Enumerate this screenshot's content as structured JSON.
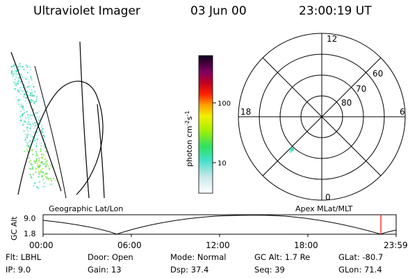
{
  "header": {
    "instrument": "Ultraviolet Imager",
    "date": "03 Jun 00",
    "time": "23:00:19 UT"
  },
  "colorbar": {
    "label": "photon cm",
    "label_sup1": "-2",
    "label_mid": "s",
    "label_sup2": "-1",
    "tick_100": "100",
    "tick_10": "10"
  },
  "polar": {
    "mlt_top": "12",
    "mlt_left": "18",
    "mlt_right": "6",
    "mlt_bottom": "0",
    "lat_60": "60",
    "lat_70": "70",
    "lat_80": "80"
  },
  "labels": {
    "geo_panel": "Geographic Lat/Lon",
    "apex_panel": "Apex MLat/MLT"
  },
  "altitude_plot": {
    "axis_label": "GC Alt",
    "y_top": "9.0",
    "y_bottom": "1.8",
    "x_ticks": [
      "00:00",
      "06:00",
      "12:00",
      "18:00",
      "23:59"
    ],
    "marker_color": "#ff0000"
  },
  "info": {
    "flt_label": "Flt:",
    "flt_value": "LBHL",
    "door_label": "Door:",
    "door_value": "Open",
    "mode_label": "Mode:",
    "mode_value": "Normal",
    "gcalt_label": "GC Alt:",
    "gcalt_value": "1.7 Re",
    "glat_label": "GLat:",
    "glat_value": "-80.7",
    "ip_label": "IP:",
    "ip_value": "9.0",
    "gain_label": "Gain:",
    "gain_value": "13",
    "dsp_label": "Dsp:",
    "dsp_value": "37.4",
    "seq_label": "Seq:",
    "seq_value": "39",
    "glon_label": "GLon:",
    "glon_value": "71.4"
  }
}
